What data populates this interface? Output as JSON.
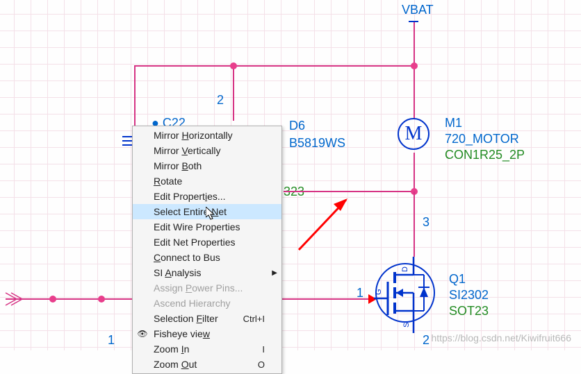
{
  "net_labels": {
    "vbat": "VBAT"
  },
  "components": {
    "d6": {
      "ref": "D6",
      "value": "B5819WS"
    },
    "m1": {
      "ref": "M1",
      "value": "720_MOTOR",
      "footprint": "CON1R25_2P",
      "symbol_letter": "M"
    },
    "q1": {
      "ref": "Q1",
      "value": "SI2302",
      "footprint": "SOT23"
    },
    "partial_ref": "C22",
    "partial_value_323": "323"
  },
  "pins": {
    "p1": "1",
    "p2": "2",
    "p3": "3",
    "p2b": "2",
    "p1b": "1"
  },
  "menu": {
    "items": [
      {
        "label_prefix": "Mirror ",
        "u": "H",
        "label_suffix": "orizontally",
        "enabled": true
      },
      {
        "label_prefix": "Mirror ",
        "u": "V",
        "label_suffix": "ertically",
        "enabled": true
      },
      {
        "label_prefix": "Mirror ",
        "u": "B",
        "label_suffix": "oth",
        "enabled": true
      },
      {
        "label_prefix": "",
        "u": "R",
        "label_suffix": "otate",
        "enabled": true
      },
      {
        "label_prefix": "Edit Propert",
        "u": "i",
        "label_suffix": "es...",
        "enabled": true
      },
      {
        "label_prefix": "Select Entire ",
        "u": "N",
        "label_suffix": "et",
        "enabled": true,
        "highlighted": true
      },
      {
        "label_prefix": "Edit Wire Properties",
        "u": "",
        "label_suffix": "",
        "enabled": true
      },
      {
        "label_prefix": "Edit Net Properties",
        "u": "",
        "label_suffix": "",
        "enabled": true
      },
      {
        "label_prefix": "",
        "u": "C",
        "label_suffix": "onnect to Bus",
        "enabled": true
      },
      {
        "label_prefix": "SI ",
        "u": "A",
        "label_suffix": "nalysis",
        "enabled": true,
        "submenu": true
      },
      {
        "label_prefix": "Assign ",
        "u": "P",
        "label_suffix": "ower Pins...",
        "enabled": false
      },
      {
        "label_prefix": "Ascend Hierarchy",
        "u": "",
        "label_suffix": "",
        "enabled": false
      },
      {
        "label_prefix": "Selection ",
        "u": "F",
        "label_suffix": "ilter",
        "enabled": true,
        "shortcut": "Ctrl+I"
      },
      {
        "label_prefix": "Fisheye vie",
        "u": "w",
        "label_suffix": "",
        "enabled": true,
        "icon": "eye"
      },
      {
        "label_prefix": "Zoom ",
        "u": "I",
        "label_suffix": "n",
        "enabled": true,
        "shortcut": "I"
      },
      {
        "label_prefix": "Zoom ",
        "u": "O",
        "label_suffix": "ut",
        "enabled": true,
        "shortcut": "O"
      }
    ]
  },
  "mosfet": {
    "d": "D",
    "g": "G",
    "s": "S"
  },
  "watermark": "https://blog.csdn.net/Kiwifruit666",
  "colors": {
    "wire": "#d63384",
    "junction": "#e83e8c",
    "blue": "#0066cc",
    "green": "#228B22",
    "menu_highlight": "#cce8ff",
    "arrow_red": "#ff0000",
    "symbol_blue": "#0033cc"
  }
}
